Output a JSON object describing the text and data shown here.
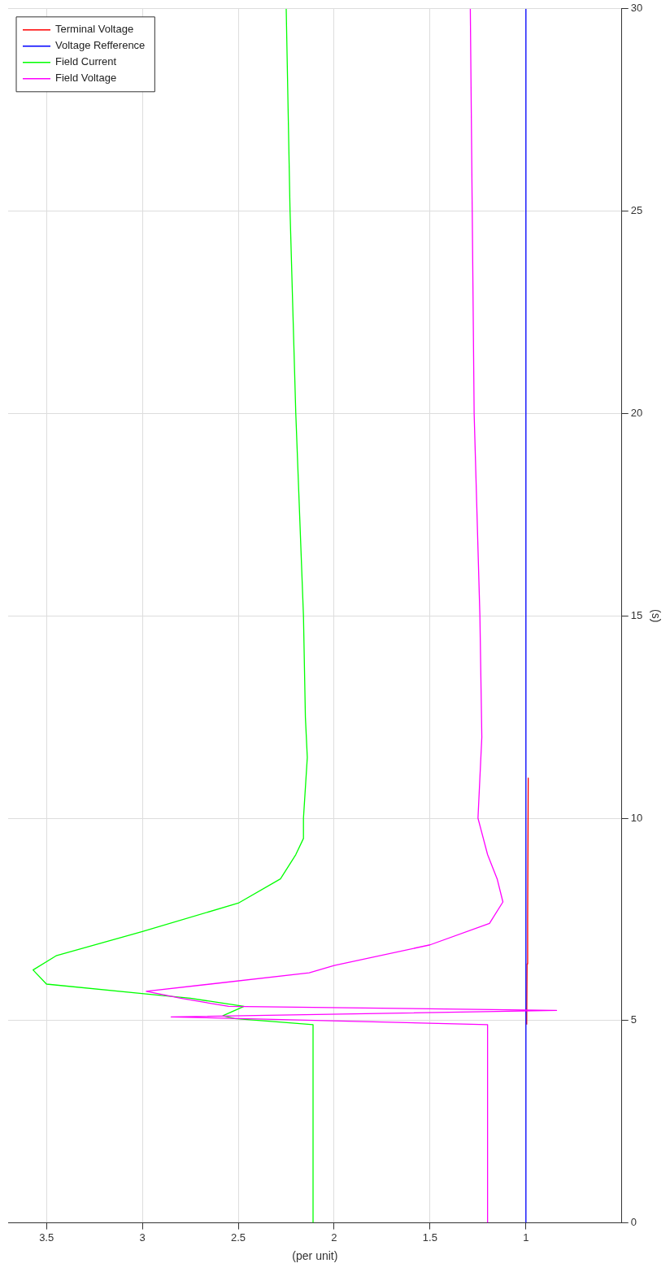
{
  "chart_data": {
    "type": "line",
    "xlabel": "(per unit)",
    "ylabel": "(s)",
    "xlim": [
      3.7,
      0.5
    ],
    "ylim": [
      0,
      30
    ],
    "xticks": [
      3.5,
      3,
      2.5,
      2,
      1.5,
      1
    ],
    "yticks": [
      0,
      5,
      10,
      15,
      20,
      25,
      30
    ],
    "grid": true,
    "legend": "top left",
    "marker": "none",
    "line_style": "solid",
    "series": [
      {
        "name": "Terminal Voltage",
        "color": "#ff0000",
        "x": [
          0.996,
          0.994,
          0.991,
          0.988
        ],
        "values": [
          4.9,
          6.4,
          7.5,
          11
        ]
      },
      {
        "name": "Voltage Refference",
        "color": "#0000ff",
        "x": [
          1,
          1
        ],
        "values": [
          0,
          30
        ]
      },
      {
        "name": "Field Current",
        "color": "#00ff00",
        "x": [
          2.11,
          2.11,
          2.52,
          2.58,
          2.47,
          2.75,
          2.97,
          3.5,
          3.57,
          3.45,
          3.0,
          2.5,
          2.28,
          2.2,
          2.16,
          2.16,
          2.14,
          2.15,
          2.16,
          2.2,
          2.23,
          2.25
        ],
        "values": [
          0,
          4.9,
          5.05,
          5.12,
          5.35,
          5.55,
          5.65,
          5.9,
          6.25,
          6.6,
          7.2,
          7.9,
          8.5,
          9.1,
          9.5,
          10,
          11.5,
          12.5,
          15,
          20,
          25,
          30
        ]
      },
      {
        "name": "Field Voltage",
        "color": "#ff00ff",
        "x": [
          1.2,
          1.2,
          2.85,
          0.84,
          2.55,
          2.8,
          2.98,
          2.13,
          2.0,
          1.5,
          1.19,
          1.12,
          1.15,
          1.2,
          1.25,
          1.23,
          1.24,
          1.27,
          1.28,
          1.29
        ],
        "values": [
          0,
          4.9,
          5.09,
          5.25,
          5.35,
          5.55,
          5.72,
          6.18,
          6.36,
          6.87,
          7.4,
          7.93,
          8.5,
          9.1,
          10,
          12,
          15,
          20,
          25,
          30
        ]
      }
    ]
  }
}
